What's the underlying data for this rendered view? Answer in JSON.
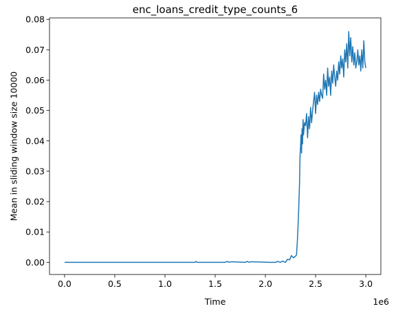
{
  "chart_data": {
    "type": "line",
    "title": "enc_loans_credit_type_counts_6",
    "xlabel": "Time",
    "ylabel": "Mean in sliding window size 10000",
    "x_offset_label": "1e6",
    "xlim": [
      -0.15,
      3.15
    ],
    "ylim": [
      -0.004,
      0.0805
    ],
    "x_ticks": [
      0.0,
      0.5,
      1.0,
      1.5,
      2.0,
      2.5,
      3.0
    ],
    "x_tick_labels": [
      "0.0",
      "0.5",
      "1.0",
      "1.5",
      "2.0",
      "2.5",
      "3.0"
    ],
    "y_ticks": [
      0.0,
      0.01,
      0.02,
      0.03,
      0.04,
      0.05,
      0.06,
      0.07,
      0.08
    ],
    "y_tick_labels": [
      "0.00",
      "0.01",
      "0.02",
      "0.03",
      "0.04",
      "0.05",
      "0.06",
      "0.07",
      "0.08"
    ],
    "grid": false,
    "legend": "none",
    "color": "#1f77b4",
    "series": [
      {
        "x": [
          0.0,
          1.0,
          1.3,
          1.31,
          1.32,
          1.6,
          1.62,
          1.64,
          1.66,
          1.8,
          1.82,
          1.84,
          1.86,
          2.05,
          2.1,
          2.12,
          2.15,
          2.17,
          2.2,
          2.22,
          2.24,
          2.26,
          2.28,
          2.3,
          2.31,
          2.32,
          2.33,
          2.34,
          2.345,
          2.35,
          2.355,
          2.36,
          2.365,
          2.37,
          2.375,
          2.38,
          2.39,
          2.4,
          2.41,
          2.42,
          2.43,
          2.44,
          2.45,
          2.46,
          2.47,
          2.48,
          2.49,
          2.5,
          2.51,
          2.52,
          2.53,
          2.54,
          2.55,
          2.56,
          2.57,
          2.58,
          2.59,
          2.6,
          2.61,
          2.62,
          2.63,
          2.64,
          2.65,
          2.66,
          2.67,
          2.68,
          2.69,
          2.7,
          2.71,
          2.72,
          2.73,
          2.74,
          2.75,
          2.76,
          2.77,
          2.78,
          2.79,
          2.8,
          2.81,
          2.82,
          2.83,
          2.84,
          2.85,
          2.86,
          2.87,
          2.88,
          2.89,
          2.9,
          2.91,
          2.92,
          2.93,
          2.94,
          2.95,
          2.96,
          2.97,
          2.98,
          2.99,
          3.0
        ],
        "y": [
          0.0,
          0.0,
          0.0,
          0.0003,
          0.0,
          0.0,
          0.0003,
          0.0,
          0.0002,
          0.0,
          0.0003,
          0.0,
          0.0002,
          0.0,
          0.0,
          0.0003,
          0.0,
          0.0004,
          0.0,
          0.001,
          0.0008,
          0.0022,
          0.0015,
          0.002,
          0.0025,
          0.008,
          0.016,
          0.026,
          0.035,
          0.038,
          0.042,
          0.036,
          0.044,
          0.039,
          0.047,
          0.042,
          0.046,
          0.045,
          0.049,
          0.041,
          0.048,
          0.044,
          0.051,
          0.046,
          0.05,
          0.053,
          0.056,
          0.049,
          0.055,
          0.052,
          0.056,
          0.053,
          0.057,
          0.055,
          0.054,
          0.062,
          0.057,
          0.06,
          0.055,
          0.064,
          0.058,
          0.061,
          0.055,
          0.063,
          0.059,
          0.065,
          0.061,
          0.058,
          0.063,
          0.06,
          0.066,
          0.062,
          0.068,
          0.064,
          0.067,
          0.061,
          0.07,
          0.066,
          0.072,
          0.064,
          0.076,
          0.068,
          0.074,
          0.066,
          0.071,
          0.065,
          0.069,
          0.064,
          0.066,
          0.07,
          0.065,
          0.068,
          0.063,
          0.07,
          0.064,
          0.073,
          0.066,
          0.064
        ]
      }
    ]
  }
}
